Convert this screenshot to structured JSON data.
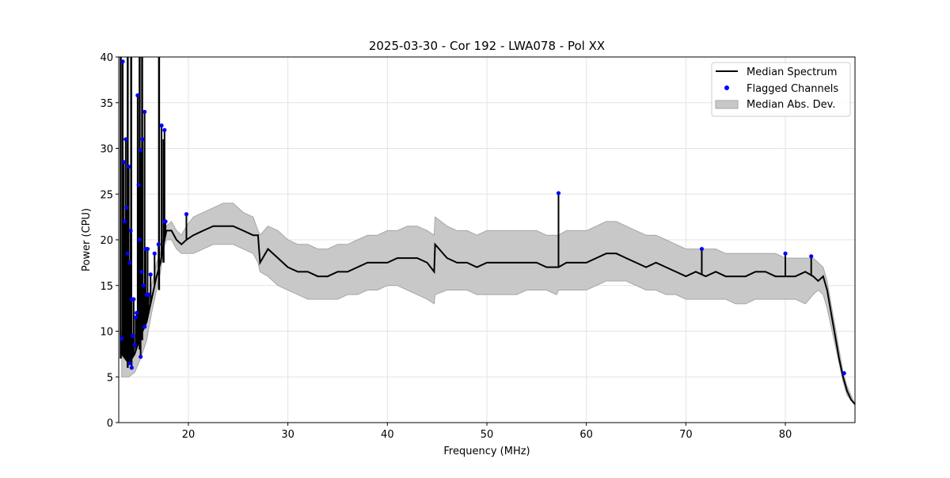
{
  "chart_data": {
    "type": "line",
    "title": "2025-03-30 - Cor 192 - LWA078 - Pol XX",
    "xlabel": "Frequency (MHz)",
    "ylabel": "Power (CPU)",
    "xlim": [
      13,
      87
    ],
    "ylim": [
      0,
      40
    ],
    "xticks": [
      20,
      30,
      40,
      50,
      60,
      70,
      80
    ],
    "yticks": [
      0,
      5,
      10,
      15,
      20,
      25,
      30,
      35,
      40
    ],
    "grid": true,
    "legend": {
      "position": "upper right",
      "entries": [
        "Median Spectrum",
        "Flagged Channels",
        "Median Abs. Dev."
      ]
    },
    "colors": {
      "median": "#000000",
      "flagged": "#0000ff",
      "mad_fill": "#c8c8c8",
      "mad_edge": "#a6a6a6"
    },
    "series": [
      {
        "name": "Median Spectrum",
        "x": [
          13.3,
          14.0,
          14.6,
          15.2,
          15.8,
          16.3,
          16.8,
          17.2,
          17.5,
          17.8,
          18.3,
          18.8,
          19.3,
          19.8,
          20.5,
          21.5,
          22.5,
          23.5,
          24.5,
          25.5,
          26.5,
          27.0,
          27.2,
          28.0,
          29.0,
          30.0,
          31.0,
          32.0,
          33.0,
          34.0,
          35.0,
          36.0,
          37.0,
          38.0,
          39.0,
          40.0,
          41.0,
          42.0,
          43.0,
          44.0,
          44.7,
          44.8,
          46.0,
          47.0,
          48.0,
          49.0,
          50.0,
          51.0,
          52.0,
          53.0,
          54.0,
          55.0,
          56.0,
          57.0,
          57.2,
          58.0,
          59.0,
          60.0,
          61.0,
          62.0,
          63.0,
          64.0,
          65.0,
          66.0,
          67.0,
          68.0,
          69.0,
          70.0,
          71.0,
          72.0,
          73.0,
          74.0,
          75.0,
          76.0,
          77.0,
          78.0,
          79.0,
          80.0,
          81.0,
          82.0,
          82.8,
          83.3,
          83.8,
          84.2,
          84.6,
          85.0,
          85.4,
          85.8,
          86.2,
          86.6,
          87.0
        ],
        "y": [
          7.5,
          6.5,
          7.5,
          9.5,
          11.0,
          13.5,
          16.0,
          17.5,
          19.5,
          21.0,
          21.0,
          20.0,
          19.5,
          20.0,
          20.5,
          21.0,
          21.5,
          21.5,
          21.5,
          21.0,
          20.5,
          20.5,
          17.5,
          19.0,
          18.0,
          17.0,
          16.5,
          16.5,
          16.0,
          16.0,
          16.5,
          16.5,
          17.0,
          17.5,
          17.5,
          17.5,
          18.0,
          18.0,
          18.0,
          17.5,
          16.5,
          19.5,
          18.0,
          17.5,
          17.5,
          17.0,
          17.5,
          17.5,
          17.5,
          17.5,
          17.5,
          17.5,
          17.0,
          17.0,
          17.0,
          17.5,
          17.5,
          17.5,
          18.0,
          18.5,
          18.5,
          18.0,
          17.5,
          17.0,
          17.5,
          17.0,
          16.5,
          16.0,
          16.5,
          16.0,
          16.5,
          16.0,
          16.0,
          16.0,
          16.5,
          16.5,
          16.0,
          16.0,
          16.0,
          16.5,
          16.0,
          15.5,
          16.0,
          14.5,
          12.0,
          9.5,
          7.0,
          5.0,
          3.5,
          2.5,
          2.0
        ]
      },
      {
        "name": "Median Abs. Dev.",
        "x": [
          13.3,
          14.0,
          14.6,
          15.2,
          15.8,
          16.3,
          16.8,
          17.2,
          17.5,
          17.8,
          18.3,
          18.8,
          19.3,
          19.8,
          20.5,
          21.5,
          22.5,
          23.5,
          24.5,
          25.5,
          26.5,
          27.0,
          27.2,
          28.0,
          29.0,
          30.0,
          31.0,
          32.0,
          33.0,
          34.0,
          35.0,
          36.0,
          37.0,
          38.0,
          39.0,
          40.0,
          41.0,
          42.0,
          43.0,
          44.0,
          44.7,
          44.8,
          46.0,
          47.0,
          48.0,
          49.0,
          50.0,
          51.0,
          52.0,
          53.0,
          54.0,
          55.0,
          56.0,
          57.0,
          57.2,
          58.0,
          59.0,
          60.0,
          61.0,
          62.0,
          63.0,
          64.0,
          65.0,
          66.0,
          67.0,
          68.0,
          69.0,
          70.0,
          71.0,
          72.0,
          73.0,
          74.0,
          75.0,
          76.0,
          77.0,
          78.0,
          79.0,
          80.0,
          81.0,
          82.0,
          82.8,
          83.3,
          83.8,
          84.2,
          84.6,
          85.0,
          85.4,
          85.8,
          86.2,
          86.6,
          87.0
        ],
        "lower": [
          5.0,
          5.0,
          5.5,
          7.0,
          9.0,
          12.0,
          14.5,
          16.5,
          19.0,
          20.0,
          20.0,
          19.0,
          18.5,
          18.5,
          18.5,
          19.0,
          19.5,
          19.5,
          19.5,
          19.0,
          18.5,
          17.5,
          16.5,
          16.0,
          15.0,
          14.5,
          14.0,
          13.5,
          13.5,
          13.5,
          13.5,
          14.0,
          14.0,
          14.5,
          14.5,
          15.0,
          15.0,
          14.5,
          14.0,
          13.5,
          13.0,
          14.0,
          14.5,
          14.5,
          14.5,
          14.0,
          14.0,
          14.0,
          14.0,
          14.0,
          14.5,
          14.5,
          14.5,
          14.0,
          14.5,
          14.5,
          14.5,
          14.5,
          15.0,
          15.5,
          15.5,
          15.5,
          15.0,
          14.5,
          14.5,
          14.0,
          14.0,
          13.5,
          13.5,
          13.5,
          13.5,
          13.5,
          13.0,
          13.0,
          13.5,
          13.5,
          13.5,
          13.5,
          13.5,
          13.0,
          14.0,
          14.5,
          14.0,
          12.5,
          10.5,
          8.5,
          6.5,
          4.5,
          3.0,
          2.5,
          2.0
        ],
        "upper": [
          10.0,
          8.5,
          9.5,
          12.0,
          13.0,
          15.0,
          17.5,
          18.5,
          20.5,
          21.5,
          22.0,
          21.0,
          20.5,
          21.5,
          22.5,
          23.0,
          23.5,
          24.0,
          24.0,
          23.0,
          22.5,
          21.0,
          20.5,
          21.5,
          21.0,
          20.0,
          19.5,
          19.5,
          19.0,
          19.0,
          19.5,
          19.5,
          20.0,
          20.5,
          20.5,
          21.0,
          21.0,
          21.5,
          21.5,
          21.0,
          20.5,
          22.5,
          21.5,
          21.0,
          21.0,
          20.5,
          21.0,
          21.0,
          21.0,
          21.0,
          21.0,
          21.0,
          20.5,
          20.5,
          20.5,
          21.0,
          21.0,
          21.0,
          21.5,
          22.0,
          22.0,
          21.5,
          21.0,
          20.5,
          20.5,
          20.0,
          19.5,
          19.0,
          19.0,
          19.0,
          19.0,
          18.5,
          18.5,
          18.5,
          18.5,
          18.5,
          18.5,
          18.0,
          18.0,
          18.0,
          18.0,
          17.5,
          17.0,
          15.5,
          13.0,
          10.5,
          8.0,
          5.5,
          4.0,
          3.0,
          2.0
        ]
      },
      {
        "name": "Flagged Channels",
        "x": [
          13.4,
          13.5,
          13.6,
          13.7,
          13.8,
          13.9,
          14.0,
          14.1,
          14.2,
          14.3,
          14.4,
          14.5,
          14.6,
          14.7,
          14.8,
          14.9,
          15.0,
          15.1,
          15.2,
          15.3,
          15.4,
          15.5,
          15.6,
          15.7,
          15.8,
          15.9,
          16.0,
          16.2,
          16.6,
          17.0,
          17.3,
          17.6,
          17.6,
          17.7,
          19.8,
          57.2,
          71.6,
          80.0,
          82.6,
          85.9,
          13.3,
          14.3,
          14.1,
          15.6,
          15.2
        ],
        "y": [
          39.5,
          28.5,
          22.0,
          31.0,
          23.5,
          18.5,
          28.0,
          17.5,
          21.0,
          13.5,
          9.5,
          13.5,
          8.5,
          11.5,
          12.0,
          35.8,
          26.0,
          20.0,
          29.8,
          16.5,
          31.0,
          15.0,
          34.0,
          19.0,
          14.0,
          19.0,
          14.0,
          16.2,
          18.5,
          19.5,
          32.5,
          32.0,
          22.0,
          22.0,
          22.8,
          25.1,
          19.0,
          18.5,
          18.2,
          5.4,
          9.2,
          6.0,
          6.5,
          10.5,
          7.2
        ]
      }
    ]
  }
}
